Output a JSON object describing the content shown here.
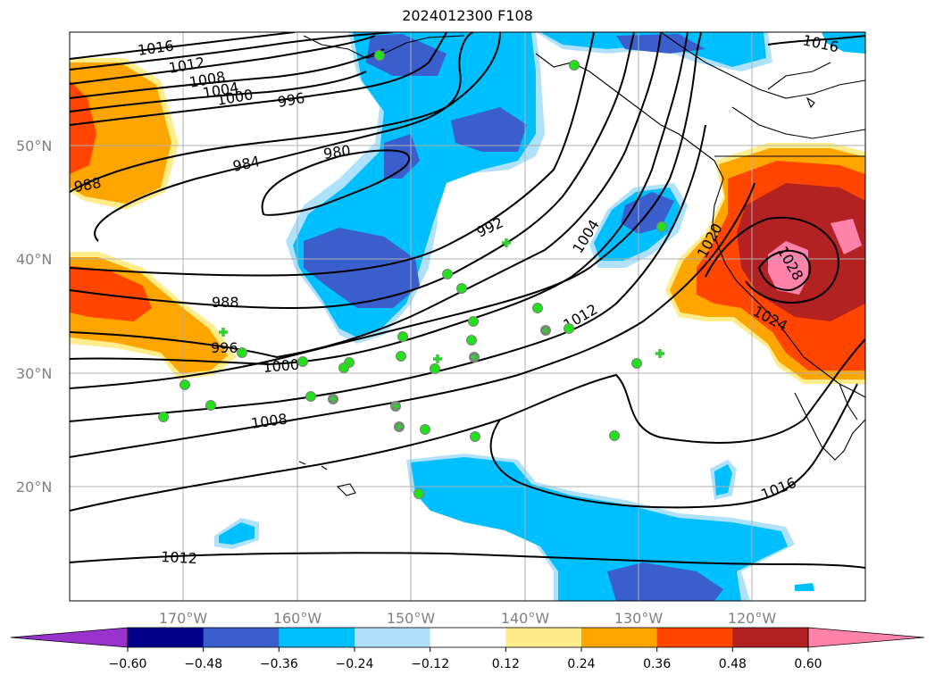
{
  "title": "2024012300 F108",
  "axes": {
    "lat_labels": [
      "50°N",
      "40°N",
      "30°N",
      "20°N"
    ],
    "lon_labels": [
      "170°W",
      "160°W",
      "150°W",
      "140°W",
      "130°W",
      "120°W"
    ]
  },
  "isobar_labels": [
    "1016",
    "1012",
    "1008",
    "1004",
    "1000",
    "996",
    "984",
    "980",
    "988",
    "992",
    "1004",
    "988",
    "996",
    "1000",
    "1008",
    "1012",
    "1016",
    "1012",
    "1020",
    "1024",
    "1028",
    "1016"
  ],
  "colorbar": {
    "ticks": [
      "−0.60",
      "−0.48",
      "−0.36",
      "−0.24",
      "−0.12",
      "0.12",
      "0.24",
      "0.36",
      "0.48",
      "0.60"
    ],
    "colors": [
      "#9932cc",
      "#00008b",
      "#3a5fcd",
      "#00bfff",
      "#afe1fa",
      "#ffffff",
      "#ffec8b",
      "#ffa500",
      "#ff4500",
      "#b22222",
      "#ff82ab"
    ]
  },
  "station_markers": {
    "circle_color": "#22e01b",
    "cross_color": "#32cd32"
  }
}
